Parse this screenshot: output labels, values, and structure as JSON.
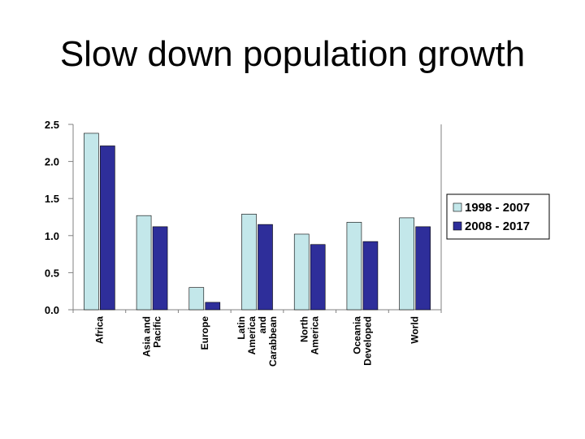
{
  "slide": {
    "title": "Slow down population growth"
  },
  "colors": {
    "series1": "#c3e7ea",
    "series2": "#2e2e9a",
    "axis": "#808080",
    "bar_edge": "#000000"
  },
  "chart_data": {
    "type": "bar",
    "title": "",
    "xlabel": "",
    "ylabel": "",
    "ylim": [
      0,
      2.5
    ],
    "yticks": [
      "0.0",
      "0.5",
      "1.0",
      "1.5",
      "2.0",
      "2.5"
    ],
    "grid": false,
    "legend_position": "right",
    "categories": [
      [
        "Africa"
      ],
      [
        "Asia and",
        "Pacific"
      ],
      [
        "Europe"
      ],
      [
        "Latin",
        "America",
        "and",
        "Carabbean"
      ],
      [
        "North",
        "America"
      ],
      [
        "Oceania",
        "Developed"
      ],
      [
        "World"
      ]
    ],
    "series": [
      {
        "name": "1998 - 2007",
        "values": [
          2.38,
          1.27,
          0.3,
          1.29,
          1.02,
          1.18,
          1.24
        ]
      },
      {
        "name": "2008 - 2017",
        "values": [
          2.21,
          1.12,
          0.1,
          1.15,
          0.88,
          0.92,
          1.12
        ]
      }
    ]
  }
}
